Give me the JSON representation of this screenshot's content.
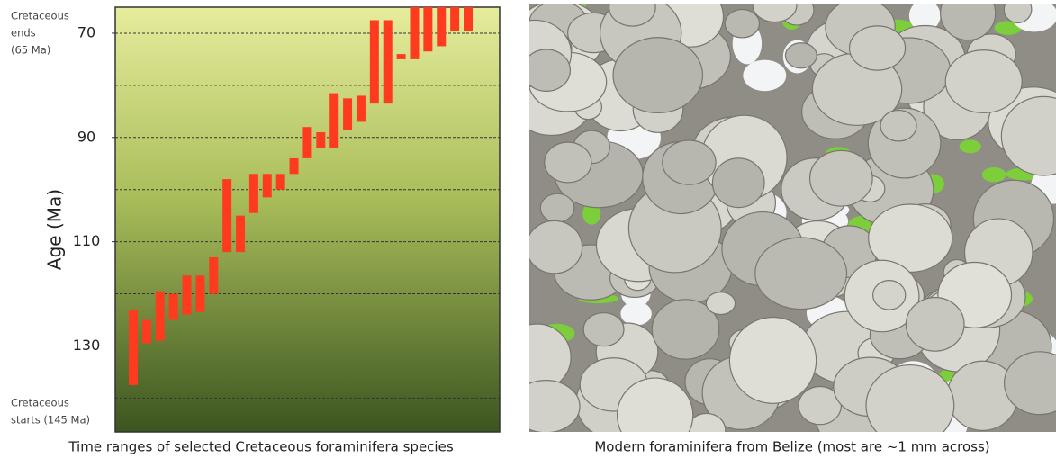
{
  "chart_data": {
    "type": "range-bar",
    "ylabel": "Age (Ma)",
    "caption": "Time ranges of selected Cretaceous foraminifera species",
    "annotations": [
      {
        "lines": [
          "Cretaceous",
          "ends",
          "(65 Ma)"
        ],
        "at": 65
      },
      {
        "lines": [
          "Cretaceous",
          "starts (145 Ma)"
        ],
        "at": 145
      }
    ],
    "ylim": [
      65,
      146.5
    ],
    "inverted": true,
    "yticks": [
      70,
      90,
      110,
      130
    ],
    "grid": [
      70,
      80,
      90,
      100,
      110,
      120,
      130,
      140
    ],
    "color": "#ff3b1f",
    "ranges": [
      [
        123,
        137.5
      ],
      [
        125,
        129.5
      ],
      [
        119.5,
        129
      ],
      [
        120,
        125
      ],
      [
        116.5,
        124
      ],
      [
        116.5,
        123.5
      ],
      [
        113,
        120
      ],
      [
        98,
        112
      ],
      [
        105,
        112
      ],
      [
        97,
        104.5
      ],
      [
        97,
        101.5
      ],
      [
        97,
        100
      ],
      [
        94,
        97
      ],
      [
        88,
        94
      ],
      [
        89,
        92
      ],
      [
        81.5,
        92
      ],
      [
        82.5,
        88.5
      ],
      [
        82,
        87
      ],
      [
        67.5,
        83.5
      ],
      [
        67.5,
        83.5
      ],
      [
        74,
        75
      ],
      [
        65,
        75
      ],
      [
        65,
        73.5
      ],
      [
        65,
        72.5
      ],
      [
        65,
        69.5
      ],
      [
        65,
        69.5
      ]
    ]
  },
  "photo": {
    "caption": "Modern foraminifera from Belize (most are ~1 mm across)"
  }
}
